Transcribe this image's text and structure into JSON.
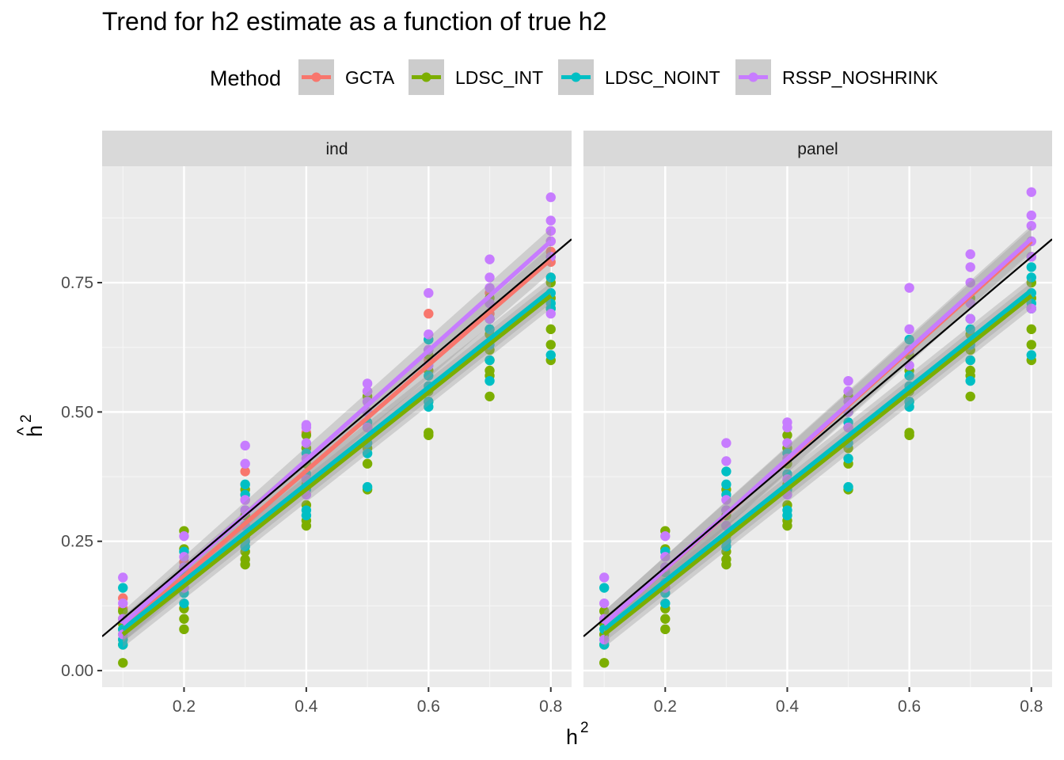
{
  "chart_data": {
    "type": "scatter",
    "title": "Trend for h2 estimate as a function of true h2",
    "xlabel": "h",
    "xlabel_sup": "2",
    "ylabel": "h",
    "ylabel_sup": "2",
    "ylabel_hat": "^",
    "legend": {
      "title": "Method",
      "placement": "top",
      "entries": [
        {
          "name": "GCTA",
          "color": "#F8766D"
        },
        {
          "name": "LDSC_INT",
          "color": "#7CAE00"
        },
        {
          "name": "LDSC_NOINT",
          "color": "#00BFC4"
        },
        {
          "name": "RSSP_NOSHRINK",
          "color": "#C77CFF"
        }
      ]
    },
    "grid": true,
    "xlim": [
      0.066,
      0.834
    ],
    "ylim": [
      -0.032,
      0.975
    ],
    "x_ticks": [
      "0.2",
      "0.4",
      "0.6",
      "0.8"
    ],
    "y_ticks": [
      "0.00",
      "0.25",
      "0.50",
      "0.75"
    ],
    "x_tick_values": [
      0.2,
      0.4,
      0.6,
      0.8
    ],
    "y_tick_values": [
      0.0,
      0.25,
      0.5,
      0.75
    ],
    "reference_line": {
      "slope": 1,
      "intercept": 0,
      "color": "#000000"
    },
    "panels": [
      {
        "label": "ind",
        "series": [
          {
            "name": "GCTA",
            "color": "#F8766D",
            "trend": {
              "x": [
                0.1,
                0.8
              ],
              "y": [
                0.08,
                0.795
              ]
            },
            "points": {
              "0.1": [
                0.06,
                0.08,
                0.1,
                0.12,
                0.14
              ],
              "0.2": [
                0.16,
                0.18,
                0.2,
                0.21
              ],
              "0.3": [
                0.26,
                0.3,
                0.33,
                0.385
              ],
              "0.4": [
                0.37,
                0.4,
                0.43,
                0.46
              ],
              "0.5": [
                0.44,
                0.47,
                0.5,
                0.52,
                0.54
              ],
              "0.6": [
                0.58,
                0.6,
                0.62,
                0.64,
                0.69
              ],
              "0.7": [
                0.66,
                0.69,
                0.71,
                0.73
              ],
              "0.8": [
                0.76,
                0.79,
                0.81,
                0.83,
                0.85
              ]
            }
          },
          {
            "name": "LDSC_INT",
            "color": "#7CAE00",
            "trend": {
              "x": [
                0.1,
                0.8
              ],
              "y": [
                0.07,
                0.725
              ]
            },
            "points": {
              "0.1": [
                0.015,
                0.05,
                0.07,
                0.09,
                0.1,
                0.115
              ],
              "0.2": [
                0.08,
                0.1,
                0.12,
                0.16,
                0.2,
                0.235,
                0.27
              ],
              "0.3": [
                0.205,
                0.215,
                0.23,
                0.26,
                0.3,
                0.35
              ],
              "0.4": [
                0.28,
                0.29,
                0.32,
                0.36,
                0.4,
                0.43,
                0.455
              ],
              "0.5": [
                0.35,
                0.4,
                0.43,
                0.47,
                0.5,
                0.53
              ],
              "0.6": [
                0.455,
                0.46,
                0.52,
                0.54,
                0.58,
                0.61
              ],
              "0.7": [
                0.53,
                0.57,
                0.58,
                0.6,
                0.62,
                0.65,
                0.68,
                0.72
              ],
              "0.8": [
                0.6,
                0.63,
                0.66,
                0.7,
                0.72,
                0.75,
                0.8
              ]
            }
          },
          {
            "name": "LDSC_NOINT",
            "color": "#00BFC4",
            "trend": {
              "x": [
                0.1,
                0.8
              ],
              "y": [
                0.08,
                0.735
              ]
            },
            "points": {
              "0.1": [
                0.05,
                0.06,
                0.08,
                0.16
              ],
              "0.2": [
                0.13,
                0.15,
                0.17,
                0.19,
                0.23
              ],
              "0.3": [
                0.24,
                0.25,
                0.28,
                0.31,
                0.34,
                0.36
              ],
              "0.4": [
                0.3,
                0.31,
                0.35,
                0.38,
                0.42
              ],
              "0.5": [
                0.355,
                0.42,
                0.44,
                0.48,
                0.5
              ],
              "0.6": [
                0.51,
                0.52,
                0.55,
                0.57,
                0.62,
                0.64
              ],
              "0.7": [
                0.56,
                0.6,
                0.63,
                0.66,
                0.68
              ],
              "0.8": [
                0.61,
                0.7,
                0.71,
                0.73,
                0.76
              ]
            }
          },
          {
            "name": "RSSP_NOSHRINK",
            "color": "#C77CFF",
            "trend": {
              "x": [
                0.1,
                0.8
              ],
              "y": [
                0.09,
                0.83
              ]
            },
            "points": {
              "0.1": [
                0.07,
                0.1,
                0.13,
                0.18
              ],
              "0.2": [
                0.16,
                0.2,
                0.22,
                0.26
              ],
              "0.3": [
                0.28,
                0.31,
                0.33,
                0.4,
                0.435
              ],
              "0.4": [
                0.34,
                0.37,
                0.41,
                0.44,
                0.47,
                0.475
              ],
              "0.5": [
                0.47,
                0.5,
                0.52,
                0.54,
                0.555
              ],
              "0.6": [
                0.59,
                0.62,
                0.65,
                0.73
              ],
              "0.7": [
                0.68,
                0.71,
                0.74,
                0.76,
                0.795
              ],
              "0.8": [
                0.69,
                0.8,
                0.83,
                0.85,
                0.87,
                0.915
              ]
            }
          }
        ]
      },
      {
        "label": "panel",
        "series": [
          {
            "name": "GCTA",
            "color": "#F8766D",
            "trend": {
              "x": [
                0.1,
                0.8
              ],
              "y": [
                0.09,
                0.83
              ]
            },
            "points": {}
          },
          {
            "name": "LDSC_INT",
            "color": "#7CAE00",
            "trend": {
              "x": [
                0.1,
                0.8
              ],
              "y": [
                0.07,
                0.725
              ]
            },
            "points": {
              "0.1": [
                0.015,
                0.05,
                0.07,
                0.09,
                0.1,
                0.115
              ],
              "0.2": [
                0.08,
                0.1,
                0.12,
                0.16,
                0.2,
                0.235,
                0.27
              ],
              "0.3": [
                0.205,
                0.215,
                0.23,
                0.26,
                0.3,
                0.35
              ],
              "0.4": [
                0.28,
                0.29,
                0.32,
                0.36,
                0.4,
                0.43,
                0.455
              ],
              "0.5": [
                0.35,
                0.4,
                0.43,
                0.47,
                0.5,
                0.53
              ],
              "0.6": [
                0.455,
                0.46,
                0.52,
                0.54,
                0.58,
                0.61
              ],
              "0.7": [
                0.53,
                0.57,
                0.58,
                0.6,
                0.62,
                0.65,
                0.68,
                0.72
              ],
              "0.8": [
                0.6,
                0.63,
                0.66,
                0.7,
                0.72,
                0.75,
                0.8
              ]
            }
          },
          {
            "name": "LDSC_NOINT",
            "color": "#00BFC4",
            "trend": {
              "x": [
                0.1,
                0.8
              ],
              "y": [
                0.08,
                0.735
              ]
            },
            "points": {
              "0.1": [
                0.05,
                0.06,
                0.08,
                0.16
              ],
              "0.2": [
                0.13,
                0.15,
                0.17,
                0.19,
                0.23
              ],
              "0.3": [
                0.24,
                0.25,
                0.28,
                0.31,
                0.34,
                0.36,
                0.385
              ],
              "0.4": [
                0.3,
                0.31,
                0.35,
                0.38,
                0.42
              ],
              "0.5": [
                0.355,
                0.41,
                0.44,
                0.48,
                0.5
              ],
              "0.6": [
                0.51,
                0.52,
                0.55,
                0.57,
                0.62,
                0.64
              ],
              "0.7": [
                0.56,
                0.6,
                0.63,
                0.66,
                0.68
              ],
              "0.8": [
                0.61,
                0.7,
                0.71,
                0.73,
                0.76,
                0.78
              ]
            }
          },
          {
            "name": "RSSP_NOSHRINK",
            "color": "#C77CFF",
            "trend": {
              "x": [
                0.1,
                0.8
              ],
              "y": [
                0.09,
                0.835
              ]
            },
            "points": {
              "0.1": [
                0.06,
                0.1,
                0.13,
                0.18
              ],
              "0.2": [
                0.16,
                0.2,
                0.22,
                0.26
              ],
              "0.3": [
                0.28,
                0.31,
                0.33,
                0.405,
                0.44
              ],
              "0.4": [
                0.34,
                0.37,
                0.41,
                0.44,
                0.47,
                0.48
              ],
              "0.5": [
                0.47,
                0.5,
                0.52,
                0.54,
                0.56
              ],
              "0.6": [
                0.59,
                0.62,
                0.66,
                0.74
              ],
              "0.7": [
                0.68,
                0.71,
                0.75,
                0.78,
                0.805
              ],
              "0.8": [
                0.7,
                0.8,
                0.83,
                0.86,
                0.88,
                0.925
              ]
            }
          }
        ]
      }
    ]
  }
}
